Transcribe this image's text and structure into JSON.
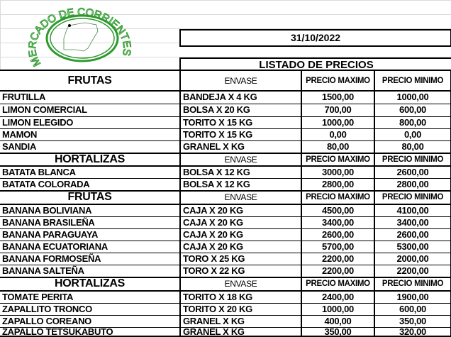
{
  "logo": {
    "text": "MERCADO DE CORRIENTES",
    "color": "#2e9a2e"
  },
  "date": "31/10/2022",
  "title": "LISTADO DE PRECIOS",
  "sections": [
    {
      "category": "FRUTAS",
      "col_envase": "ENVASE",
      "col_max": "PRECIO MAXIMO",
      "col_min": "PRECIO MINIMO",
      "rows": [
        {
          "product": "FRUTILLA",
          "envase": "BANDEJA X 4 KG",
          "max": "1500,00",
          "min": "1000,00"
        },
        {
          "product": "LIMON COMERCIAL",
          "envase": "BOLSA X 20 KG",
          "max": "700,00",
          "min": "600,00"
        },
        {
          "product": "LIMON ELEGIDO",
          "envase": "TORITO X 15 KG",
          "max": "1000,00",
          "min": "800,00"
        },
        {
          "product": "MAMON",
          "envase": "TORITO X  15 KG",
          "max": "0,00",
          "min": "0,00"
        },
        {
          "product": "SANDIA",
          "envase": "GRANEL X KG",
          "max": "80,00",
          "min": "80,00"
        }
      ]
    },
    {
      "category": "HORTALIZAS",
      "col_envase": "ENVASE",
      "col_max": "PRECIO MAXIMO",
      "col_min": "PRECIO MINIMO",
      "rows": [
        {
          "product": "BATATA BLANCA",
          "envase": "BOLSA X 12 KG",
          "max": "3000,00",
          "min": "2600,00"
        },
        {
          "product": "BATATA COLORADA",
          "envase": "BOLSA X 12 KG",
          "max": "2800,00",
          "min": "2800,00"
        }
      ]
    },
    {
      "category": "FRUTAS",
      "col_envase": "ENVASE",
      "col_max": "PRECIO MAXIMO",
      "col_min": "PRECIO MINIMO",
      "rows": [
        {
          "product": "BANANA BOLIVIANA",
          "envase": "CAJA X 20 KG",
          "max": "4500,00",
          "min": "4100,00"
        },
        {
          "product": "BANANA BRASILEÑA",
          "envase": "CAJA X 20 KG",
          "max": "3400,00",
          "min": "3400,00"
        },
        {
          "product": "BANANA PARAGUAYA",
          "envase": "CAJA X 20 KG",
          "max": "2600,00",
          "min": "2600,00"
        },
        {
          "product": "BANANA  ECUATORIANA",
          "envase": "CAJA X 20 KG",
          "max": "5700,00",
          "min": "5300,00"
        },
        {
          "product": "BANANA FORMOSEÑA",
          "envase": "TORO X 25 KG",
          "max": "2200,00",
          "min": "2000,00"
        },
        {
          "product": "BANANA SALTEÑA",
          "envase": "TORO X 22 KG",
          "max": "2200,00",
          "min": "2200,00"
        }
      ]
    },
    {
      "category": "HORTALIZAS",
      "col_envase": "ENVASE",
      "col_max": "PRECIO MAXIMO",
      "col_min": "PRECIO MINIMO",
      "rows": [
        {
          "product": "TOMATE PERITA",
          "envase": "TORITO X 18 KG",
          "max": "2400,00",
          "min": "1900,00"
        },
        {
          "product": "ZAPALLITO TRONCO",
          "envase": "TORITO X 20 KG",
          "max": "1000,00",
          "min": "600,00"
        },
        {
          "product": "ZAPALLO COREANO",
          "envase": "GRANEL X KG",
          "max": "400,00",
          "min": "350,00"
        },
        {
          "product": "ZAPALLO TETSUKABUTO",
          "envase": "GRANEL X KG",
          "max": "350,00",
          "min": "320,00"
        }
      ]
    }
  ]
}
